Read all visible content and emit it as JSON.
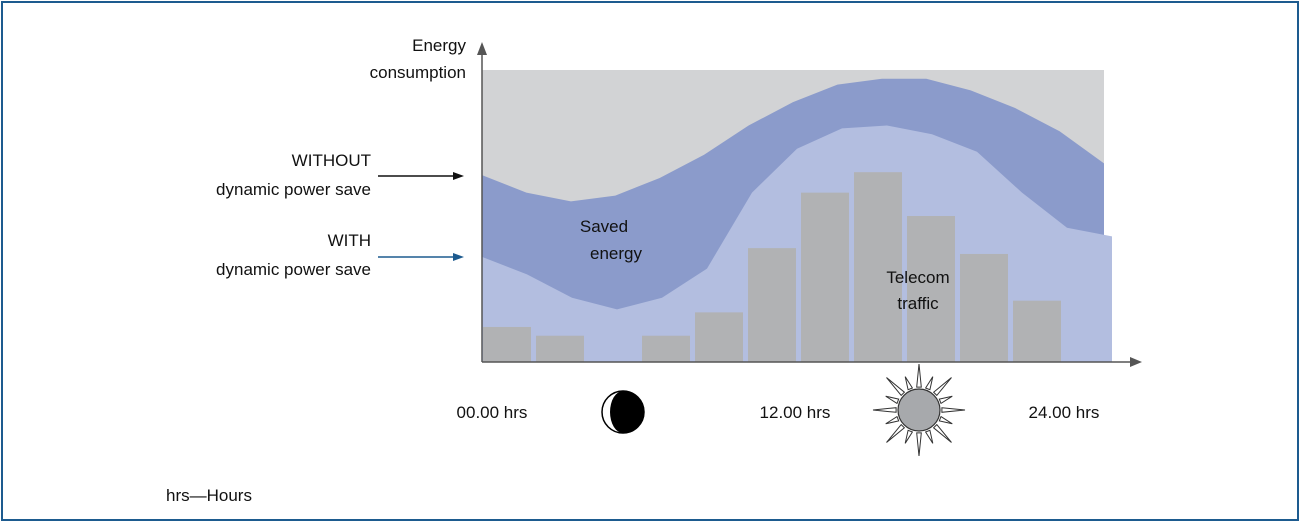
{
  "y_axis_label": [
    "Energy",
    "consumption"
  ],
  "without_label": [
    "WITHOUT",
    "dynamic power save"
  ],
  "with_label": [
    "WITH",
    "dynamic power save"
  ],
  "saved_energy_label": [
    "Saved",
    "energy"
  ],
  "telecom_traffic_label": [
    "Telecom",
    "traffic"
  ],
  "time_labels": {
    "start": "00.00 hrs",
    "mid": "12.00 hrs",
    "end": "24.00 hrs"
  },
  "footnote": "hrs—Hours",
  "icons": {
    "night": "moon-icon",
    "day": "sun-icon"
  },
  "colors": {
    "frame": "#1d5b8f",
    "background_area": "#d2d3d5",
    "without_band": "#8b9bcb",
    "with_area": "#b3bee0",
    "traffic_bars": "#b1b2b4",
    "without_arrow": "#111111",
    "with_arrow": "#1d5b8f"
  },
  "chart_data": {
    "type": "bar",
    "traffic_bars": [
      0.12,
      0.09,
      0,
      0.09,
      0.17,
      0.39,
      0.58,
      0.65,
      0.5,
      0.37,
      0.21
    ],
    "without_curve": [
      0.64,
      0.58,
      0.55,
      0.57,
      0.63,
      0.71,
      0.81,
      0.89,
      0.95,
      0.97,
      0.97,
      0.93,
      0.87,
      0.79,
      0.68
    ],
    "with_curve": [
      0.36,
      0.3,
      0.22,
      0.18,
      0.22,
      0.32,
      0.58,
      0.73,
      0.8,
      0.81,
      0.78,
      0.72,
      0.58,
      0.46,
      0.43
    ]
  }
}
